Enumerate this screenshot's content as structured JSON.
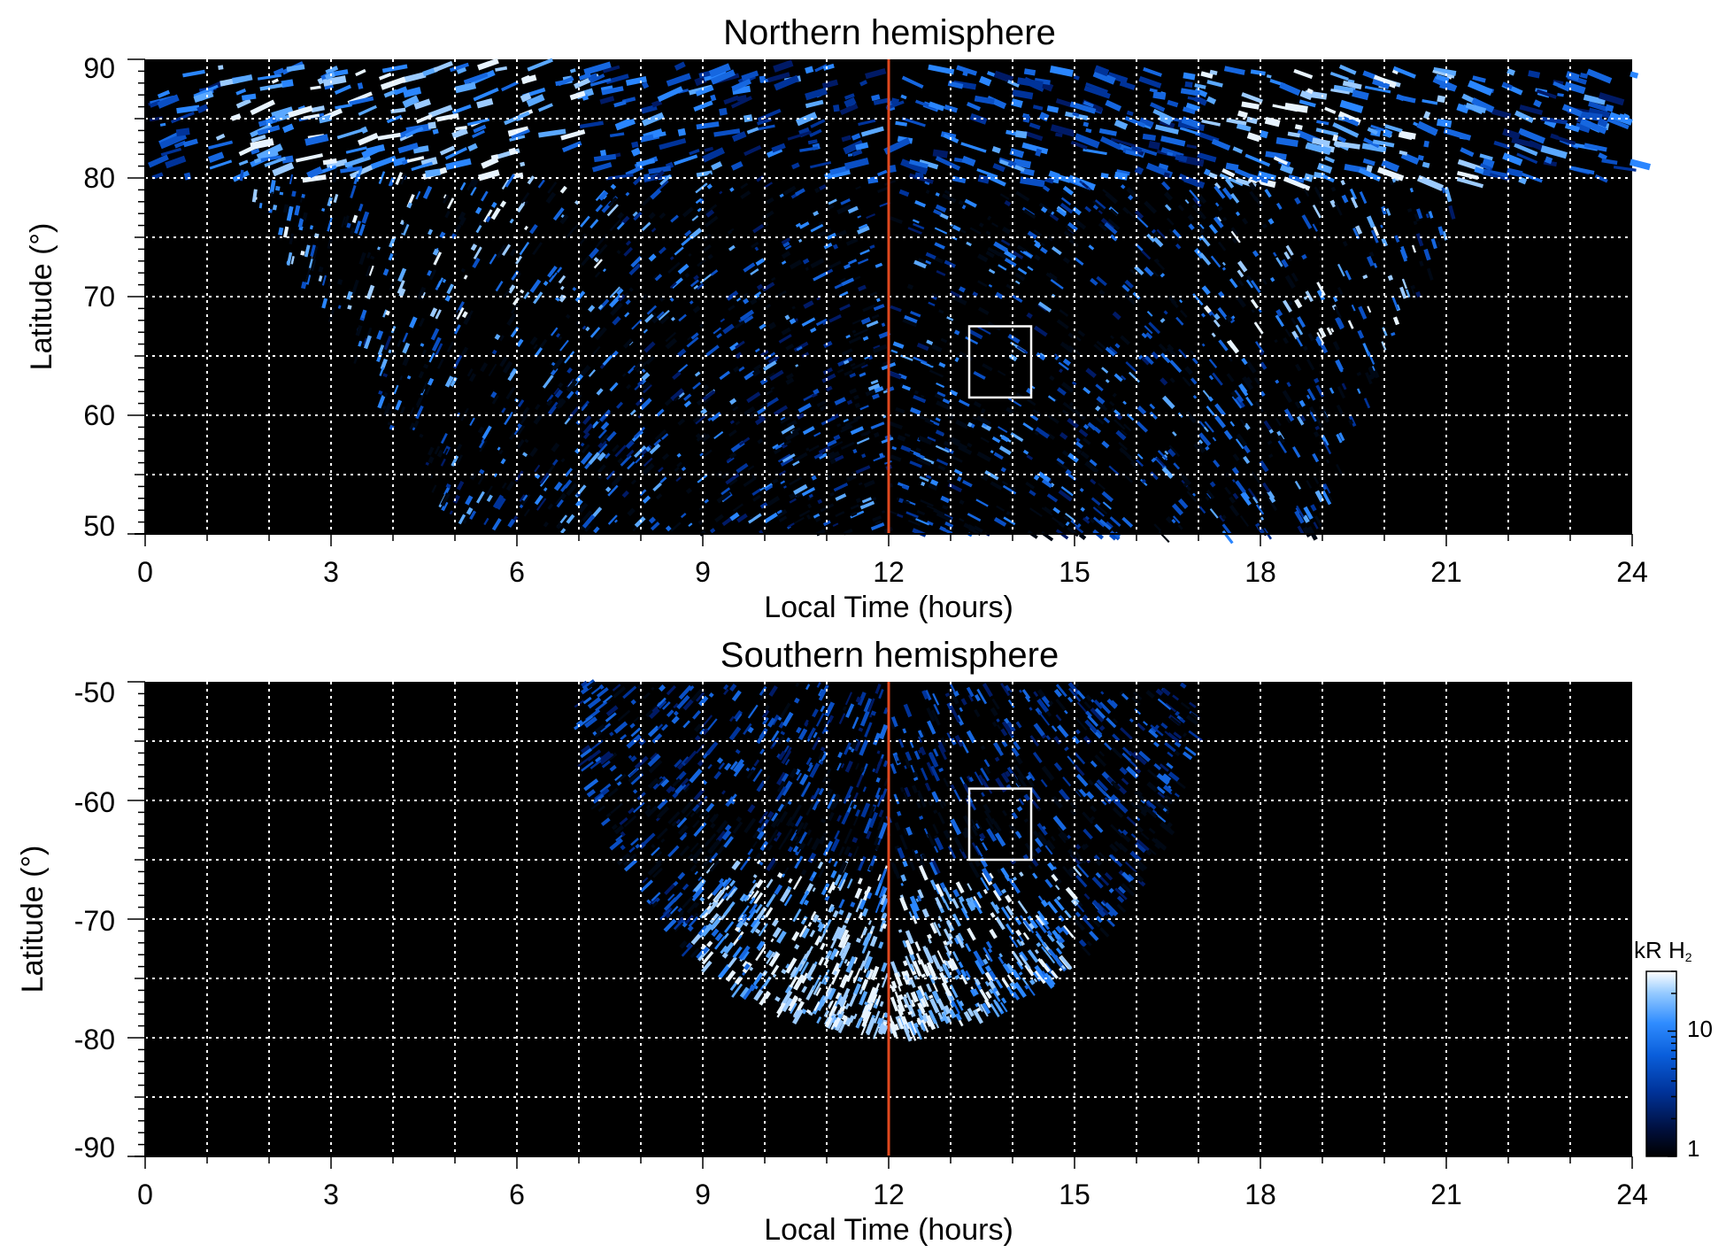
{
  "chart_data": [
    {
      "type": "heatmap",
      "title": "Northern hemisphere",
      "xlabel": "Local Time (hours)",
      "ylabel": "Latitude (°)",
      "xlim": [
        0,
        24
      ],
      "ylim": [
        50,
        90
      ],
      "x_ticks": [
        "0",
        "3",
        "6",
        "9",
        "12",
        "15",
        "18",
        "21",
        "24"
      ],
      "y_ticks": [
        "50",
        "60",
        "70",
        "80",
        "90"
      ],
      "grid": true,
      "grid_style": "white dotted",
      "noon_line": {
        "x": 12,
        "color": "#e0481e"
      },
      "box": {
        "x": [
          13.3,
          14.3
        ],
        "y": [
          61.5,
          67.5
        ],
        "color": "#ffffff"
      },
      "emission_region": {
        "top_band_lat": [
          80,
          90
        ],
        "lower_region_local_time": [
          5,
          19
        ],
        "bright_areas": [
          {
            "local_time": [
              1,
              7
            ],
            "lat": [
              76,
              86
            ]
          },
          {
            "local_time": [
              17,
              21
            ],
            "lat": [
              74,
              86
            ]
          }
        ]
      }
    },
    {
      "type": "heatmap",
      "title": "Southern hemisphere",
      "xlabel": "Local Time (hours)",
      "ylabel": "Latitude (°)",
      "xlim": [
        0,
        24
      ],
      "ylim": [
        -90,
        -50
      ],
      "x_ticks": [
        "0",
        "3",
        "6",
        "9",
        "12",
        "15",
        "18",
        "21",
        "24"
      ],
      "y_ticks": [
        "-50",
        "-60",
        "-70",
        "-80",
        "-90"
      ],
      "grid": true,
      "grid_style": "white dotted",
      "noon_line": {
        "x": 12,
        "color": "#e0481e"
      },
      "box": {
        "x": [
          13.3,
          14.3
        ],
        "y": [
          -65,
          -59
        ],
        "color": "#ffffff"
      },
      "emission_region": {
        "local_time": [
          7,
          17
        ],
        "lat": [
          -79,
          -50
        ],
        "bright_areas": [
          {
            "local_time": [
              10,
              14
            ],
            "lat": [
              -78,
              -67
            ]
          }
        ]
      }
    }
  ],
  "colorbar": {
    "title": "kR H",
    "subscript": "2",
    "scale": "log",
    "range": [
      1,
      30
    ],
    "ticks": [
      "1",
      "10"
    ],
    "colors": [
      "#000000",
      "#001a66",
      "#0047c2",
      "#1c7cf2",
      "#6cb2ff",
      "#d0e8ff",
      "#ffffff"
    ]
  }
}
